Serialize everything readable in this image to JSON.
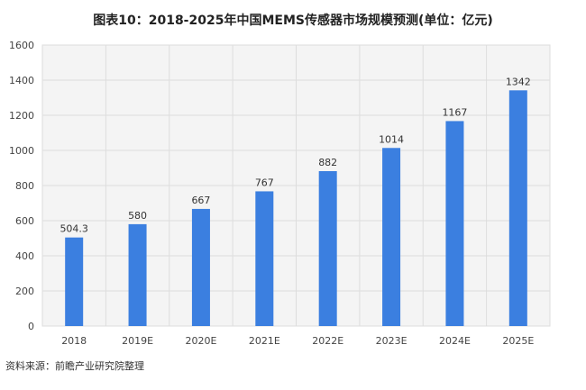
{
  "chart_data": {
    "type": "bar",
    "title": "图表10：2018-2025年中国MEMS传感器市场规模预测(单位：亿元)",
    "categories": [
      "2018",
      "2019E",
      "2020E",
      "2021E",
      "2022E",
      "2023E",
      "2024E",
      "2025E"
    ],
    "values": [
      504.3,
      580,
      667,
      767,
      882,
      1014,
      1167,
      1342
    ],
    "value_labels": [
      "504.3",
      "580",
      "667",
      "767",
      "882",
      "1014",
      "1167",
      "1342"
    ],
    "ylim": [
      0,
      1600
    ],
    "yticks": [
      0,
      200,
      400,
      600,
      800,
      1000,
      1200,
      1400,
      1600
    ],
    "grid": true,
    "bar_color": "#3b7fe0",
    "xlabel": "",
    "ylabel": ""
  },
  "source": "资料来源：前瞻产业研究院整理"
}
